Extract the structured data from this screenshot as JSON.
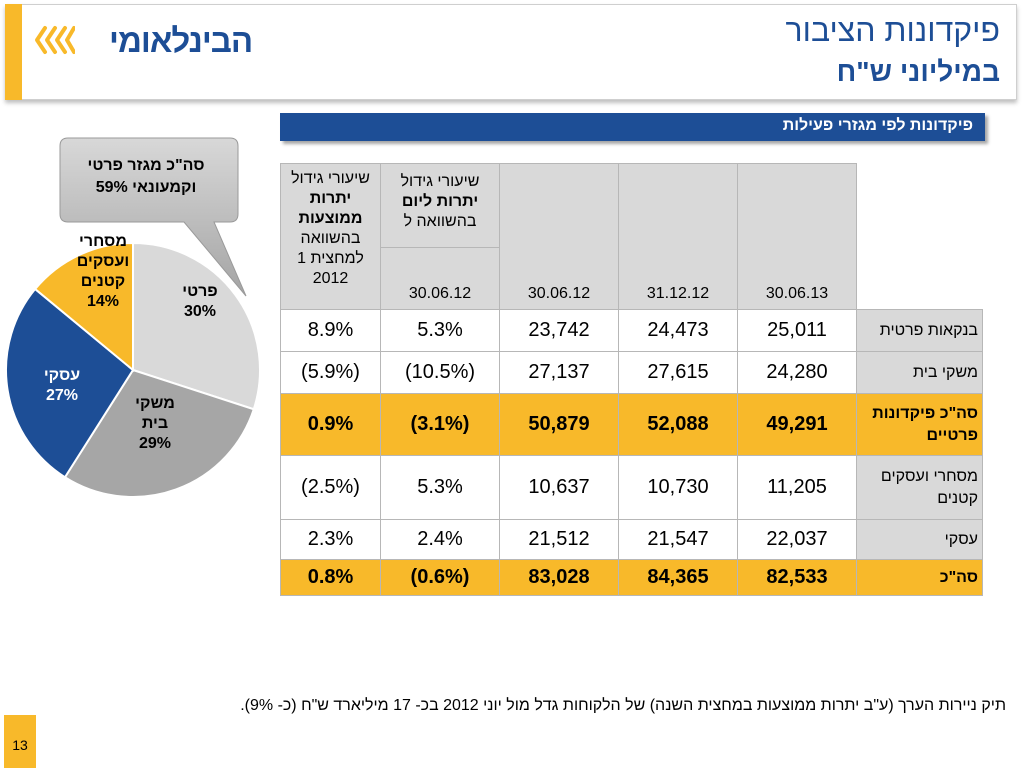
{
  "header": {
    "logo_text": "הבינלאומי",
    "title_line1": "פיקדונות הציבור",
    "title_line2": "במיליוני ש\"ח"
  },
  "section_title": "פיקדונות לפי מגזרי פעילות",
  "colors": {
    "brand_blue": "#1d4e96",
    "accent_yellow": "#f8b92a",
    "light_gray": "#d9d9d9",
    "mid_gray": "#a6a6a6"
  },
  "callout": {
    "line1": "סה\"כ מגזר פרטי",
    "line2": "וקמעונאי 59%"
  },
  "chart_data": {
    "type": "pie",
    "slices": [
      {
        "label_line1": "פרטי",
        "label_line2": "",
        "percent_label": "30%",
        "value": 30,
        "color": "#d9d9d9"
      },
      {
        "label_line1": "משקי",
        "label_line2": "בית",
        "percent_label": "29%",
        "value": 29,
        "color": "#a6a6a6"
      },
      {
        "label_line1": "עסקי",
        "label_line2": "",
        "percent_label": "27%",
        "value": 27,
        "color": "#1d4e96"
      },
      {
        "label_line1": "מסחרי",
        "label_line2": "ועסקים",
        "label_line3": "קטנים",
        "percent_label": "14%",
        "value": 14,
        "color": "#f8b92a"
      }
    ]
  },
  "table": {
    "headers": {
      "col_growth_avg": {
        "l1": "שיעורי גידול",
        "l2": "יתרות",
        "l3": "ממוצעות",
        "l4": "בהשוואה",
        "l5": "למחצית 1",
        "l6": "2012"
      },
      "col_growth_day": {
        "l1": "שיעורי גידול",
        "l2": "יתרות ליום",
        "l3": "בהשוואה ל"
      },
      "sub_date": "30.06.12",
      "dates": [
        "30.06.13",
        "31.12.12",
        "30.06.12"
      ]
    },
    "rows": [
      {
        "label": "בנקאות פרטית",
        "v1": "25,011",
        "v2": "24,473",
        "v3": "23,742",
        "g1": "5.3%",
        "g2": "8.9%"
      },
      {
        "label": "משקי בית",
        "v1": "24,280",
        "v2": "27,615",
        "v3": "27,137",
        "g1": "(10.5%)",
        "g2": "(5.9%)"
      },
      {
        "label": "סה\"כ פיקדונות פרטיים",
        "v1": "49,291",
        "v2": "52,088",
        "v3": "50,879",
        "g1": "(3.1%)",
        "g2": "0.9%"
      },
      {
        "label": "מסחרי ועסקים קטנים",
        "v1": "11,205",
        "v2": "10,730",
        "v3": "10,637",
        "g1": "5.3%",
        "g2": "(2.5%)"
      },
      {
        "label": "עסקי",
        "v1": "22,037",
        "v2": "21,547",
        "v3": "21,512",
        "g1": "2.4%",
        "g2": "2.3%"
      },
      {
        "label": "סה\"כ",
        "v1": "82,533",
        "v2": "84,365",
        "v3": "83,028",
        "g1": "(0.6%)",
        "g2": "0.8%"
      }
    ]
  },
  "footnote": "תיק ניירות הערך (ע\"ב יתרות ממוצעות במחצית השנה) של הלקוחות גדל  מול יוני 2012 בכ- 17 מיליארד ש\"ח  (כ- 9%).",
  "page_number": "13"
}
